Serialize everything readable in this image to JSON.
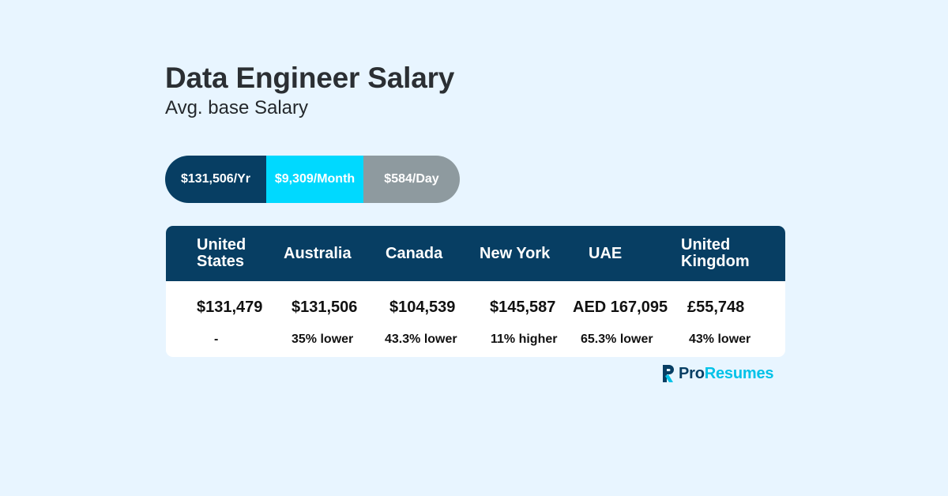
{
  "header": {
    "title": "Data Engineer Salary",
    "subtitle": "Avg. base Salary"
  },
  "pills": {
    "yearly": "$131,506/Yr",
    "monthly": "$9,309/Month",
    "daily": "$584/Day"
  },
  "table": {
    "columns": [
      {
        "header_line1": "United",
        "header_line2": "States",
        "value": "$131,479",
        "comparison": "-"
      },
      {
        "header_line1": "Australia",
        "header_line2": "",
        "value": "$131,506",
        "comparison": "35% lower"
      },
      {
        "header_line1": "Canada",
        "header_line2": "",
        "value": "$104,539",
        "comparison": "43.3% lower"
      },
      {
        "header_line1": "New York",
        "header_line2": "",
        "value": "$145,587",
        "comparison": "11% higher"
      },
      {
        "header_line1": "UAE",
        "header_line2": "",
        "value": "AED 167,095",
        "comparison": "65.3% lower"
      },
      {
        "header_line1": "United",
        "header_line2": "Kingdom",
        "value": "£55,748",
        "comparison": "43% lower"
      }
    ]
  },
  "logo": {
    "text_primary": "Pro",
    "text_accent": "Resumes",
    "icon": "proresumes-logo-icon"
  },
  "colors": {
    "background": "#e8f5ff",
    "navy": "#073e63",
    "cyan": "#00d9ff",
    "gray": "#8e9a9f"
  }
}
